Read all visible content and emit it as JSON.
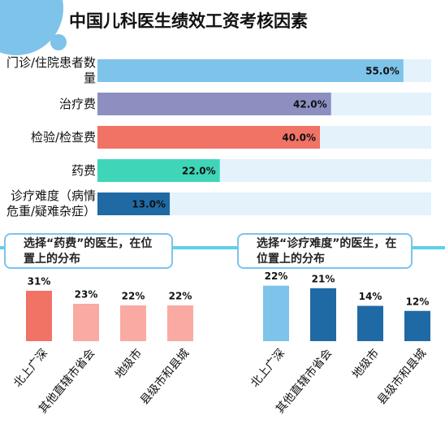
{
  "chart_data": [
    {
      "type": "bar",
      "orientation": "horizontal",
      "title": "中国儿科医生绩效工资考核因素",
      "categories": [
        "门诊/住院患者数量",
        "治疗费",
        "检验/检查费",
        "药费",
        "诊疗难度（病情危重/疑难杂症）"
      ],
      "values": [
        55.0,
        42.0,
        40.0,
        22.0,
        13.0
      ],
      "value_labels": [
        "55.0%",
        "42.0%",
        "40.0%",
        "22.0%",
        "13.0%"
      ],
      "colors": [
        "#7dc3ea",
        "#8c8fc0",
        "#f07366",
        "#3fd5b8",
        "#1f6aa5"
      ],
      "track_color": "#e3f2fb",
      "xlim": [
        0,
        60
      ]
    },
    {
      "type": "bar",
      "title": "选择“药费”的医生，在位置上的分布",
      "categories": [
        "北上广深",
        "其他直辖市省会",
        "地级市",
        "县级市和县城"
      ],
      "values": [
        31,
        23,
        22,
        22
      ],
      "value_labels": [
        "31%",
        "23%",
        "22%",
        "22%"
      ],
      "colors": [
        "#f07366",
        "#f9aaa2",
        "#f9aaa2",
        "#f9aaa2"
      ],
      "ylim": [
        0,
        45
      ]
    },
    {
      "type": "bar",
      "title": "选择“诊疗难度”的医生，在位置上的分布",
      "categories": [
        "北上广深",
        "其他直辖市省会",
        "地级市",
        "县级市和县城"
      ],
      "values": [
        22,
        21,
        14,
        12
      ],
      "value_labels": [
        "22%",
        "21%",
        "14%",
        "12%"
      ],
      "colors": [
        "#7dc3ea",
        "#1f6aa5",
        "#1f6aa5",
        "#1f6aa5"
      ],
      "ylim": [
        0,
        29
      ]
    }
  ]
}
